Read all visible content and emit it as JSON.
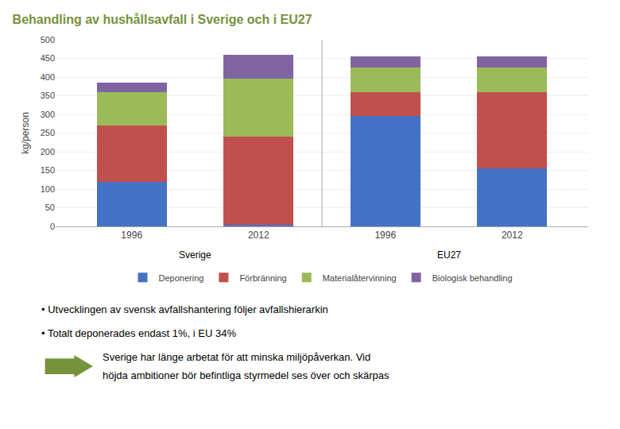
{
  "chart_data": {
    "type": "bar",
    "title": "Behandling av hushållsavfall i Sverige och i EU27",
    "color": "#76923C",
    "ylabel": "kg/person",
    "categories": [
      "1996",
      "2012",
      "1996",
      "2012"
    ],
    "group_labels": [
      "Sverige",
      "EU27"
    ],
    "series": [
      {
        "name": "Deponering",
        "color": "#4472C4",
        "values": [
          120,
          5,
          295,
          155
        ]
      },
      {
        "name": "Förbränning",
        "color": "#C0504D",
        "values": [
          150,
          235,
          65,
          205
        ]
      },
      {
        "name": "Materialåtervinning",
        "color": "#9BBB59",
        "values": [
          90,
          155,
          65,
          65
        ]
      },
      {
        "name": "Biologisk behandling",
        "color": "#8064A2",
        "values": [
          25,
          65,
          30,
          30
        ]
      }
    ],
    "stacked": true,
    "ylim": [
      0,
      500
    ],
    "yticks": [
      0,
      50,
      100,
      150,
      200,
      250,
      300,
      350,
      400,
      450,
      500
    ],
    "grid": true,
    "legend": "bottom",
    "bullet_points": [
      "• Utvecklingen av svensk avfallshantering följer avfallshierarkin",
      "• Totalt deponerades endast 1%, i EU 34%"
    ],
    "arrow_note": [
      "Sverige har länge arbetat för att minska miljöpåverkan. Vid",
      "höjda ambitioner bör befintliga styrmedel ses över och skärpas"
    ]
  }
}
